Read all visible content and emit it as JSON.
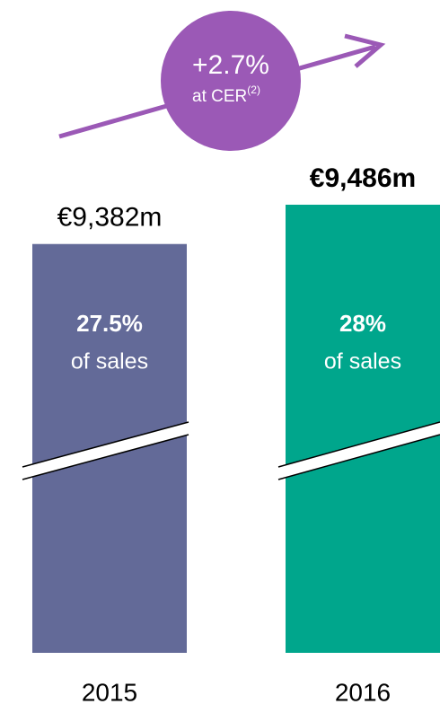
{
  "chart_data": {
    "type": "bar",
    "categories": [
      "2015",
      "2016"
    ],
    "values": [
      9382,
      9486
    ],
    "value_labels": [
      "€9,382m",
      "€9,486m"
    ],
    "colors": [
      "#636a98",
      "#00a68c"
    ],
    "share_labels": [
      "27.5%",
      "28%"
    ],
    "share_note": "of sales",
    "growth": {
      "label": "+2.7%",
      "note": "at CER",
      "note_sup": "(2)",
      "color": "#9b59b6"
    },
    "ylim": [
      8300,
      9600
    ]
  }
}
